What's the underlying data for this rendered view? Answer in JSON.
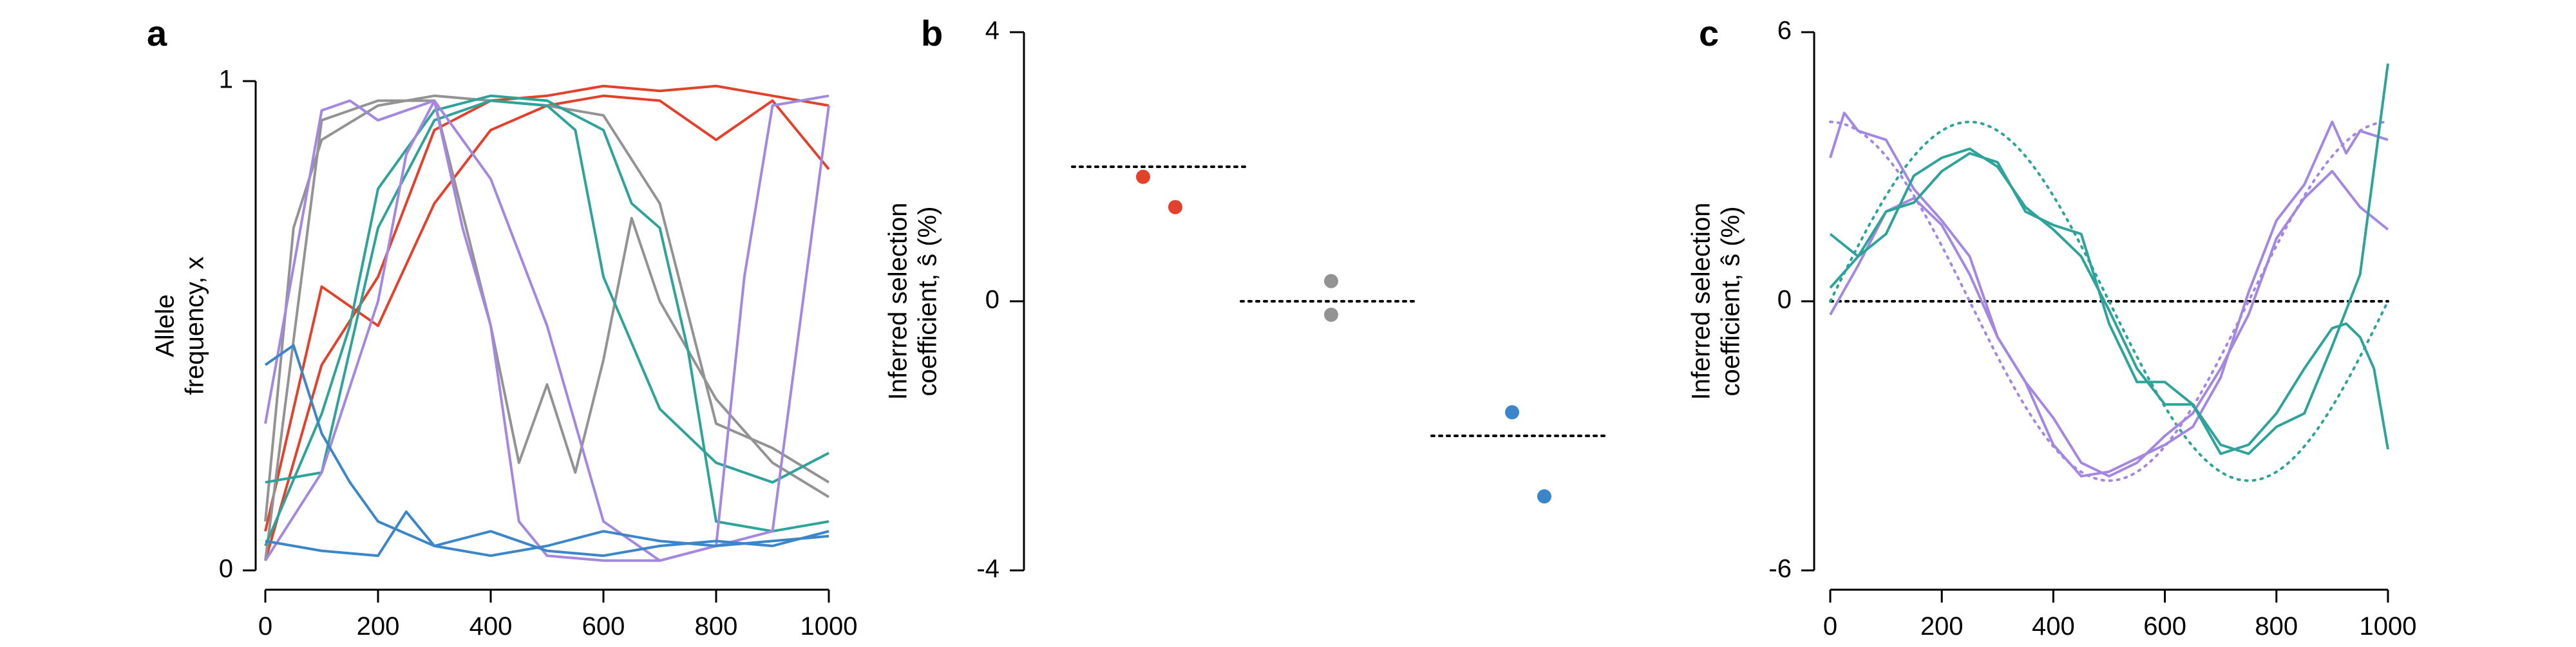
{
  "colors": {
    "red": "#e2412c",
    "gray": "#939393",
    "teal": "#2ea39a",
    "blue": "#3b86c8",
    "purple": "#a487e0"
  },
  "panels": [
    {
      "letter": "a",
      "chart_data": {
        "type": "line",
        "xlabel": "",
        "ylabel_lines": [
          "Allele",
          "frequency, x"
        ],
        "xlim": [
          0,
          1000
        ],
        "ylim": [
          0,
          1
        ],
        "xticks": [
          "0",
          "200",
          "400",
          "600",
          "800",
          "1000"
        ],
        "yticks": [
          "0",
          "1"
        ],
        "series": [
          {
            "color": "red",
            "x": [
              0,
              100,
              200,
              300,
              400,
              500,
              600,
              700,
              800,
              900,
              1000
            ],
            "values": [
              0.08,
              0.58,
              0.5,
              0.75,
              0.9,
              0.95,
              0.97,
              0.96,
              0.88,
              0.96,
              0.82
            ]
          },
          {
            "color": "red",
            "x": [
              0,
              100,
              200,
              300,
              400,
              500,
              600,
              700,
              800,
              900,
              1000
            ],
            "values": [
              0.02,
              0.42,
              0.6,
              0.9,
              0.96,
              0.97,
              0.99,
              0.98,
              0.99,
              0.97,
              0.95
            ]
          },
          {
            "color": "gray",
            "x": [
              0,
              100,
              200,
              300,
              400,
              450,
              500,
              550,
              600,
              650,
              700,
              800,
              900,
              1000
            ],
            "values": [
              0.02,
              0.92,
              0.96,
              0.96,
              0.5,
              0.22,
              0.38,
              0.2,
              0.43,
              0.72,
              0.55,
              0.35,
              0.22,
              0.15
            ]
          },
          {
            "color": "gray",
            "x": [
              0,
              50,
              100,
              200,
              300,
              400,
              500,
              600,
              700,
              800,
              900,
              1000
            ],
            "values": [
              0.1,
              0.7,
              0.88,
              0.95,
              0.97,
              0.96,
              0.95,
              0.93,
              0.75,
              0.3,
              0.25,
              0.18
            ]
          },
          {
            "color": "teal",
            "x": [
              0,
              100,
              200,
              300,
              400,
              500,
              550,
              600,
              700,
              800,
              900,
              1000
            ],
            "values": [
              0.18,
              0.2,
              0.7,
              0.92,
              0.96,
              0.95,
              0.9,
              0.6,
              0.33,
              0.22,
              0.18,
              0.24
            ]
          },
          {
            "color": "teal",
            "x": [
              0,
              100,
              150,
              200,
              300,
              400,
              500,
              600,
              650,
              700,
              750,
              800,
              900,
              1000
            ],
            "values": [
              0.05,
              0.32,
              0.5,
              0.78,
              0.94,
              0.97,
              0.96,
              0.9,
              0.75,
              0.7,
              0.45,
              0.1,
              0.08,
              0.1
            ]
          },
          {
            "color": "purple",
            "x": [
              0,
              100,
              200,
              250,
              300,
              350,
              400,
              450,
              500,
              600,
              700,
              800,
              900,
              1000
            ],
            "values": [
              0.02,
              0.2,
              0.55,
              0.85,
              0.96,
              0.7,
              0.5,
              0.1,
              0.03,
              0.02,
              0.02,
              0.05,
              0.08,
              0.95
            ]
          },
          {
            "color": "purple",
            "x": [
              0,
              100,
              150,
              200,
              300,
              400,
              500,
              600,
              700,
              800,
              850,
              900,
              1000
            ],
            "values": [
              0.3,
              0.94,
              0.96,
              0.92,
              0.96,
              0.8,
              0.5,
              0.1,
              0.02,
              0.05,
              0.6,
              0.95,
              0.97
            ]
          },
          {
            "color": "blue",
            "x": [
              0,
              50,
              100,
              150,
              200,
              300,
              400,
              500,
              600,
              700,
              800,
              900,
              1000
            ],
            "values": [
              0.42,
              0.46,
              0.28,
              0.18,
              0.1,
              0.05,
              0.03,
              0.05,
              0.08,
              0.06,
              0.05,
              0.06,
              0.07
            ]
          },
          {
            "color": "blue",
            "x": [
              0,
              100,
              200,
              250,
              300,
              400,
              500,
              600,
              700,
              800,
              900,
              1000
            ],
            "values": [
              0.06,
              0.04,
              0.03,
              0.12,
              0.05,
              0.08,
              0.04,
              0.03,
              0.05,
              0.06,
              0.05,
              0.08
            ]
          }
        ]
      }
    },
    {
      "letter": "b",
      "chart_data": {
        "type": "scatter",
        "ylabel_lines": [
          "Inferred selection",
          "coefficient, ŝ (%)"
        ],
        "ylim": [
          -4,
          4
        ],
        "yticks": [
          "-4",
          "0",
          "4"
        ],
        "groups": [
          {
            "color": "red",
            "true_value": 2,
            "points": [
              1.85,
              1.4
            ]
          },
          {
            "color": "gray",
            "true_value": 0,
            "points": [
              0.3,
              -0.2
            ]
          },
          {
            "color": "blue",
            "true_value": -2,
            "points": [
              -1.65,
              -2.9
            ]
          }
        ]
      }
    },
    {
      "letter": "c",
      "chart_data": {
        "type": "line",
        "ylabel_lines": [
          "Inferred selection",
          "coefficient, ŝ (%)"
        ],
        "xlim": [
          0,
          1000
        ],
        "ylim": [
          -6,
          6
        ],
        "xticks": [
          "0",
          "200",
          "400",
          "600",
          "800",
          "1000"
        ],
        "yticks": [
          "-6",
          "0",
          "6"
        ],
        "true_curves": [
          {
            "color": "purple",
            "amplitude": 4,
            "period": 1000,
            "phase": "cos"
          },
          {
            "color": "teal",
            "amplitude": 4,
            "period": 1000,
            "phase": "sin"
          }
        ],
        "series": [
          {
            "color": "purple",
            "x": [
              0,
              25,
              50,
              100,
              150,
              200,
              250,
              300,
              350,
              400,
              450,
              500,
              550,
              600,
              650,
              700,
              750,
              800,
              850,
              900,
              925,
              950,
              1000
            ],
            "values": [
              3.2,
              4.2,
              3.8,
              3.6,
              2.5,
              1.8,
              1.0,
              -0.8,
              -1.8,
              -3.2,
              -3.9,
              -3.8,
              -3.5,
              -3.2,
              -2.8,
              -1.7,
              0.2,
              1.8,
              2.6,
              4.0,
              3.3,
              3.8,
              3.6
            ]
          },
          {
            "color": "purple",
            "x": [
              0,
              50,
              100,
              150,
              200,
              250,
              300,
              350,
              400,
              450,
              500,
              550,
              600,
              650,
              700,
              750,
              800,
              850,
              900,
              950,
              1000
            ],
            "values": [
              -0.3,
              0.8,
              2.0,
              2.3,
              1.7,
              0.6,
              -0.8,
              -1.8,
              -2.6,
              -3.6,
              -3.9,
              -3.6,
              -3.0,
              -2.5,
              -1.5,
              -0.3,
              1.4,
              2.3,
              2.9,
              2.1,
              1.6
            ]
          },
          {
            "color": "teal",
            "x": [
              0,
              50,
              100,
              150,
              200,
              250,
              300,
              350,
              400,
              450,
              500,
              550,
              600,
              650,
              700,
              750,
              800,
              850,
              900,
              950,
              1000
            ],
            "values": [
              0.3,
              1.0,
              2.0,
              2.2,
              2.9,
              3.3,
              3.1,
              2.0,
              1.7,
              1.5,
              -0.5,
              -1.8,
              -1.8,
              -2.3,
              -3.2,
              -3.4,
              -2.8,
              -2.5,
              -1.0,
              0.6,
              5.3
            ]
          },
          {
            "color": "teal",
            "x": [
              0,
              50,
              100,
              150,
              200,
              250,
              300,
              350,
              400,
              450,
              500,
              550,
              600,
              650,
              700,
              750,
              800,
              850,
              900,
              925,
              950,
              975,
              1000
            ],
            "values": [
              1.5,
              1.0,
              1.5,
              2.8,
              3.2,
              3.4,
              3.0,
              2.1,
              1.6,
              1.0,
              -0.2,
              -1.5,
              -2.3,
              -2.3,
              -3.4,
              -3.2,
              -2.5,
              -1.5,
              -0.6,
              -0.5,
              -0.8,
              -1.5,
              -3.3
            ]
          }
        ]
      }
    }
  ]
}
